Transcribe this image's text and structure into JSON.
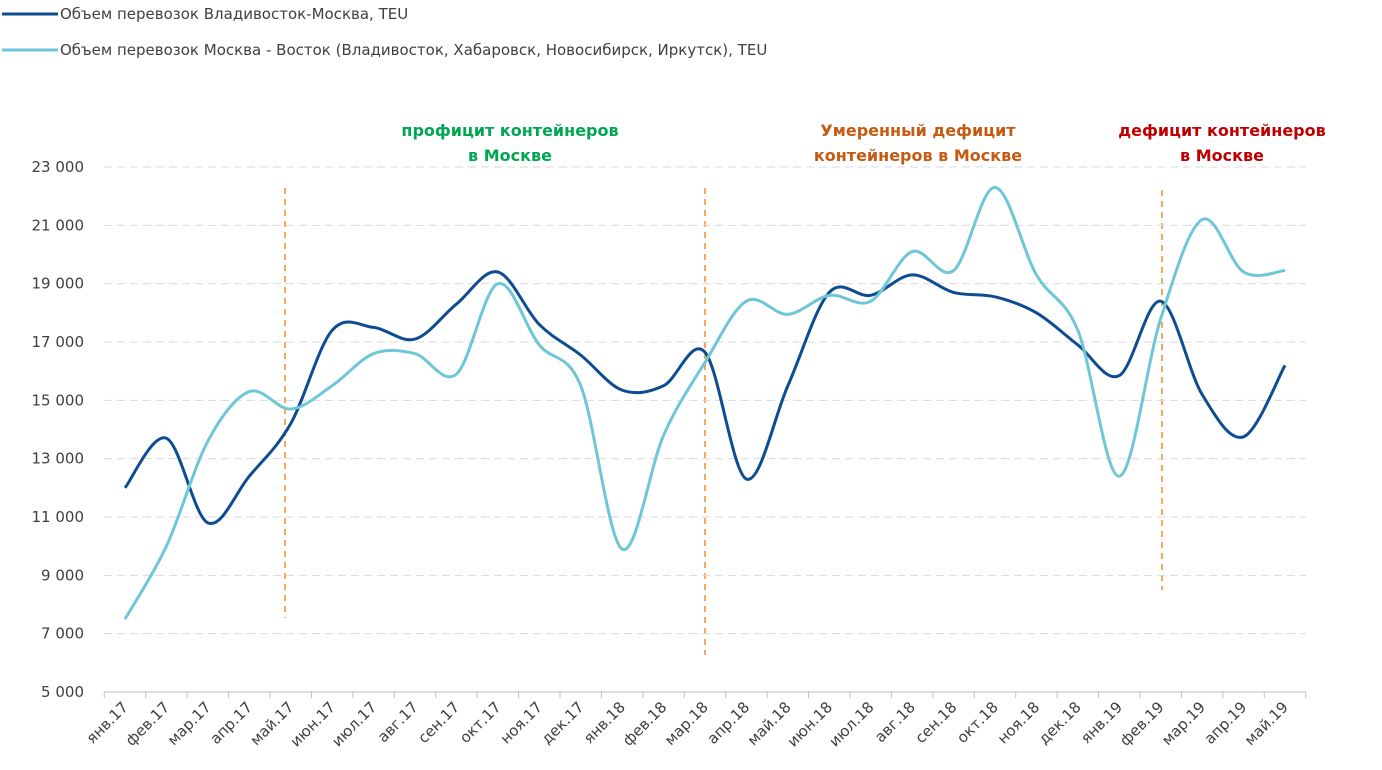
{
  "chart_data": {
    "type": "line",
    "categories": [
      "янв.17",
      "фев.17",
      "мар.17",
      "апр.17",
      "май.17",
      "июн.17",
      "июл.17",
      "авг.17",
      "сен.17",
      "окт.17",
      "ноя.17",
      "дек.17",
      "янв.18",
      "фев.18",
      "мар.18",
      "апр.18",
      "май.18",
      "июн.18",
      "июл.18",
      "авг.18",
      "сен.18",
      "окт.18",
      "ноя.18",
      "дек.18",
      "янв.19",
      "фев.19",
      "мар.19",
      "апр.19",
      "май.19"
    ],
    "series": [
      {
        "name": "Объем перевозок Владивосток-Москва, TEU",
        "color": "#0e4c92",
        "values": [
          12000,
          13700,
          10800,
          12400,
          14200,
          17400,
          17500,
          17100,
          18300,
          19400,
          17600,
          16550,
          15350,
          15500,
          16650,
          12300,
          15500,
          18700,
          18600,
          19300,
          18700,
          18550,
          18000,
          16900,
          15850,
          18400,
          15200,
          13750,
          16200
        ]
      },
      {
        "name": "Объем перевозок Москва - Восток (Владивосток, Хабаровск, Новосибирск, Иркутск), TEU",
        "color": "#6ec6d8",
        "values": [
          7500,
          10000,
          13600,
          15300,
          14700,
          15500,
          16600,
          16600,
          15900,
          19000,
          16900,
          15500,
          9900,
          13800,
          16300,
          18400,
          17950,
          18600,
          18400,
          20100,
          19450,
          22300,
          19300,
          17400,
          12400,
          17800,
          21200,
          19400,
          19450
        ]
      }
    ],
    "ylim": [
      5000,
      23000
    ],
    "yticks": [
      {
        "value": 5000,
        "label": "5 000"
      },
      {
        "value": 7000,
        "label": "7 000"
      },
      {
        "value": 9000,
        "label": "9 000"
      },
      {
        "value": 11000,
        "label": "11 000"
      },
      {
        "value": 13000,
        "label": "13 000"
      },
      {
        "value": 15000,
        "label": "15 000"
      },
      {
        "value": 17000,
        "label": "17 000"
      },
      {
        "value": 19000,
        "label": "19 000"
      },
      {
        "value": 21000,
        "label": "21 000"
      },
      {
        "value": 23000,
        "label": "23 000"
      }
    ],
    "grid": true,
    "annotations": [
      {
        "lines": [
          "профицит контейнеров",
          "в Москве"
        ],
        "color": "#00a651"
      },
      {
        "lines": [
          "Умеренный дефицит",
          "контейнеров в Москве"
        ],
        "color": "#c55a11"
      },
      {
        "lines": [
          "дефицит контейнеров",
          "в Москве"
        ],
        "color": "#c00000"
      }
    ]
  }
}
